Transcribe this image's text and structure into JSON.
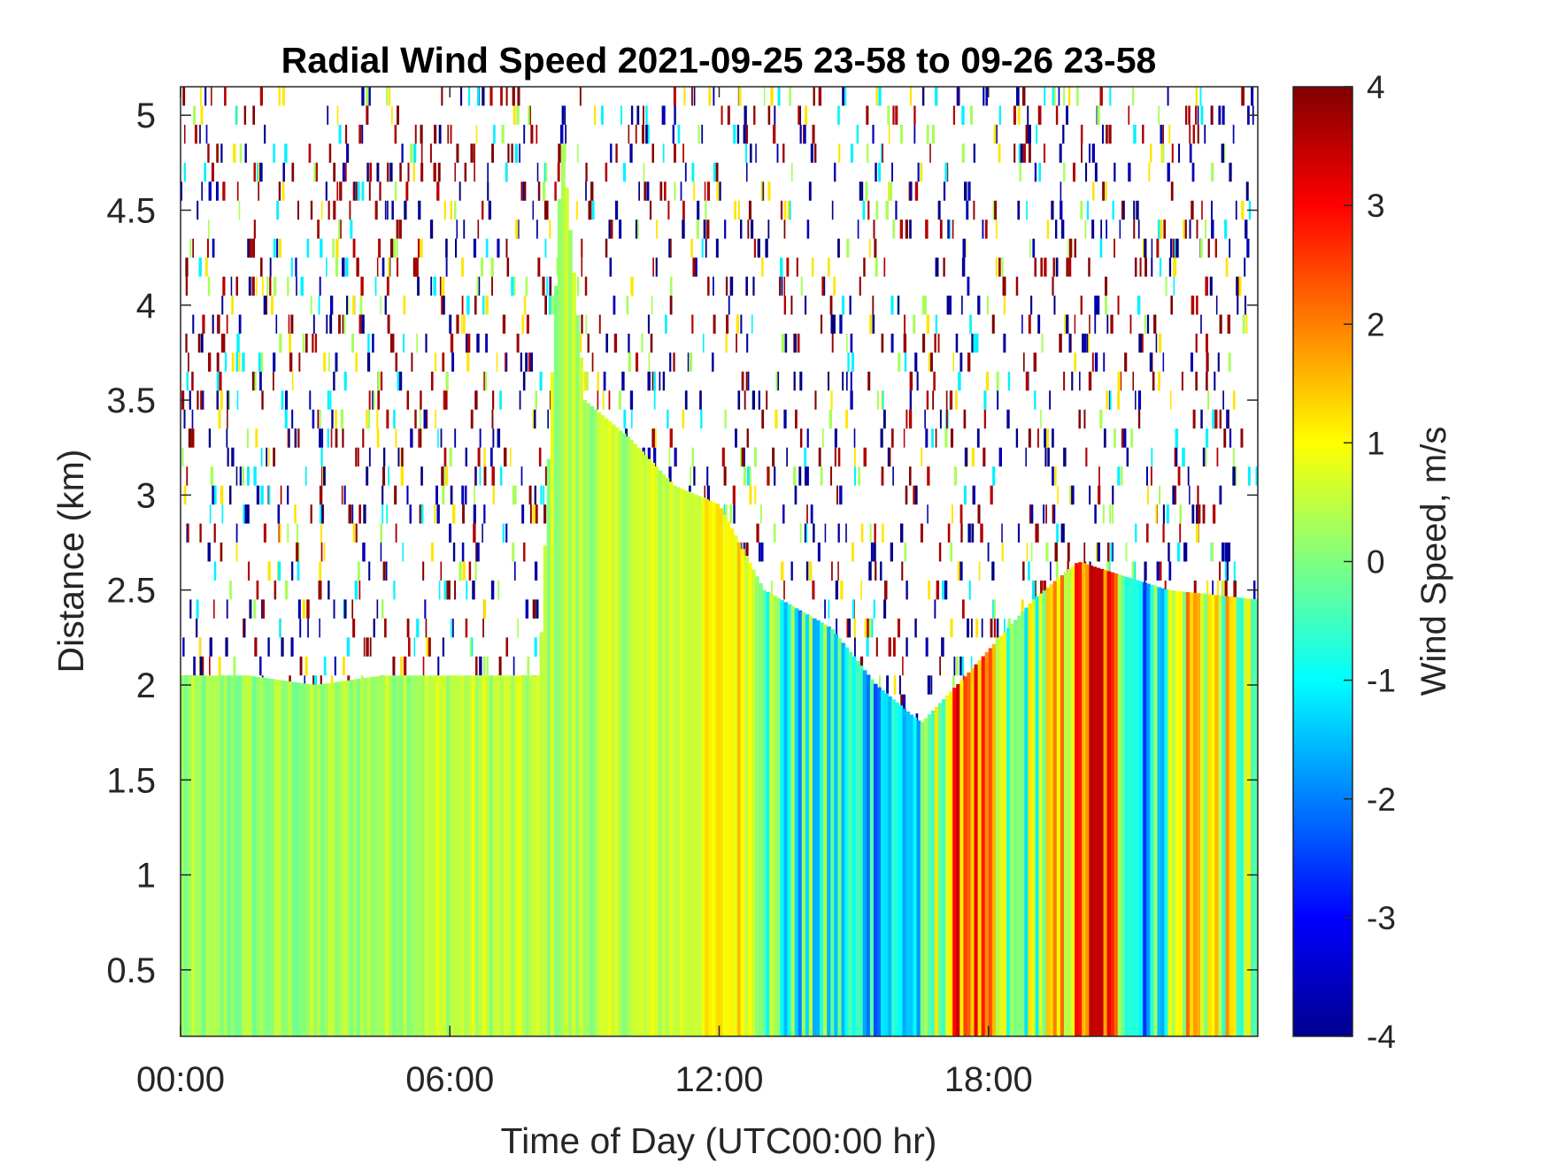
{
  "chart_data": {
    "type": "heatmap",
    "title": "Radial Wind Speed 2021-09-25 23-58 to 09-26 23-58",
    "xlabel": "Time of Day (UTC00:00 hr)",
    "ylabel": "Distance (km)",
    "x_ticks": [
      {
        "value": 0,
        "label": "00:00"
      },
      {
        "value": 6,
        "label": "06:00"
      },
      {
        "value": 12,
        "label": "12:00"
      },
      {
        "value": 18,
        "label": "18:00"
      }
    ],
    "y_ticks": [
      {
        "value": 0.5,
        "label": "0.5"
      },
      {
        "value": 1,
        "label": "1"
      },
      {
        "value": 1.5,
        "label": "1.5"
      },
      {
        "value": 2,
        "label": "2"
      },
      {
        "value": 2.5,
        "label": "2.5"
      },
      {
        "value": 3,
        "label": "3"
      },
      {
        "value": 3.5,
        "label": "3.5"
      },
      {
        "value": 4,
        "label": "4"
      },
      {
        "value": 4.5,
        "label": "4.5"
      },
      {
        "value": 5,
        "label": "5"
      }
    ],
    "xlim": [
      0,
      24
    ],
    "ylim": [
      0.15,
      5.15
    ],
    "colorbar": {
      "label": "Wind Speed, m/s",
      "colormap": "jet",
      "clim": [
        -4,
        4
      ],
      "ticks": [
        {
          "value": 4,
          "label": "4"
        },
        {
          "value": 3,
          "label": "3"
        },
        {
          "value": 2,
          "label": "2"
        },
        {
          "value": 1,
          "label": "1"
        },
        {
          "value": 0,
          "label": "0"
        },
        {
          "value": -1,
          "label": "-1"
        },
        {
          "value": -2,
          "label": "-2"
        },
        {
          "value": -3,
          "label": "-3"
        },
        {
          "value": -4,
          "label": "-4"
        }
      ]
    },
    "valid_data_top_km": [
      {
        "time_hr": 0,
        "top_km": 2.05
      },
      {
        "time_hr": 1.5,
        "top_km": 2.05
      },
      {
        "time_hr": 3,
        "top_km": 2.0
      },
      {
        "time_hr": 4.5,
        "top_km": 2.05
      },
      {
        "time_hr": 6,
        "top_km": 2.05
      },
      {
        "time_hr": 8,
        "top_km": 2.05
      },
      {
        "time_hr": 8.5,
        "top_km": 4.9
      },
      {
        "time_hr": 9,
        "top_km": 3.5
      },
      {
        "time_hr": 10,
        "top_km": 3.3
      },
      {
        "time_hr": 11,
        "top_km": 3.05
      },
      {
        "time_hr": 12,
        "top_km": 2.95
      },
      {
        "time_hr": 13,
        "top_km": 2.5
      },
      {
        "time_hr": 14.5,
        "top_km": 2.3
      },
      {
        "time_hr": 15.5,
        "top_km": 2.0
      },
      {
        "time_hr": 16.5,
        "top_km": 1.8
      },
      {
        "time_hr": 17.5,
        "top_km": 2.05
      },
      {
        "time_hr": 19,
        "top_km": 2.45
      },
      {
        "time_hr": 20,
        "top_km": 2.65
      },
      {
        "time_hr": 22,
        "top_km": 2.5
      },
      {
        "time_hr": 24,
        "top_km": 2.45
      }
    ],
    "mean_wind_speed_by_time": [
      {
        "time_hr": 0,
        "value": 0.1
      },
      {
        "time_hr": 3,
        "value": 0.2
      },
      {
        "time_hr": 6,
        "value": 0.5
      },
      {
        "time_hr": 9,
        "value": 0.35
      },
      {
        "time_hr": 11,
        "value": 0.6
      },
      {
        "time_hr": 12.5,
        "value": 1.2
      },
      {
        "time_hr": 13.5,
        "value": -0.8
      },
      {
        "time_hr": 15,
        "value": -1.0
      },
      {
        "time_hr": 16.5,
        "value": -1.3
      },
      {
        "time_hr": 17.5,
        "value": 2.8
      },
      {
        "time_hr": 18.5,
        "value": -0.5
      },
      {
        "time_hr": 19.5,
        "value": 0.8
      },
      {
        "time_hr": 20.5,
        "value": 3.0
      },
      {
        "time_hr": 21.5,
        "value": -1.5
      },
      {
        "time_hr": 22.5,
        "value": 1.5
      },
      {
        "time_hr": 24,
        "value": -0.3
      }
    ],
    "grid": false,
    "legend": "colorbar-right"
  }
}
